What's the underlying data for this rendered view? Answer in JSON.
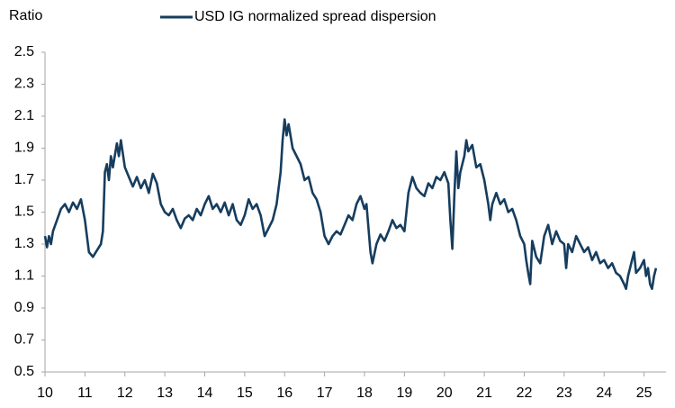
{
  "chart_data": {
    "type": "line",
    "y_label": "Ratio",
    "xlim": [
      10,
      25.55
    ],
    "xticks": [
      10,
      11,
      12,
      13,
      14,
      15,
      16,
      17,
      18,
      19,
      20,
      21,
      22,
      23,
      24,
      25
    ],
    "ylim": [
      0.5,
      2.5
    ],
    "yticks": [
      0.5,
      0.7,
      0.9,
      1.1,
      1.3,
      1.5,
      1.7,
      1.9,
      2.1,
      2.3,
      2.5
    ],
    "grid": false,
    "legend": "top",
    "x": [
      10.0,
      10.05,
      10.1,
      10.15,
      10.2,
      10.3,
      10.4,
      10.5,
      10.6,
      10.7,
      10.8,
      10.9,
      11.0,
      11.05,
      11.1,
      11.2,
      11.3,
      11.4,
      11.45,
      11.5,
      11.55,
      11.6,
      11.65,
      11.7,
      11.8,
      11.85,
      11.9,
      12.0,
      12.1,
      12.2,
      12.3,
      12.4,
      12.5,
      12.6,
      12.7,
      12.8,
      12.9,
      13.0,
      13.1,
      13.2,
      13.3,
      13.4,
      13.5,
      13.6,
      13.7,
      13.8,
      13.9,
      14.0,
      14.1,
      14.2,
      14.3,
      14.4,
      14.5,
      14.6,
      14.7,
      14.8,
      14.9,
      15.0,
      15.1,
      15.2,
      15.3,
      15.4,
      15.5,
      15.6,
      15.7,
      15.8,
      15.9,
      15.95,
      16.0,
      16.05,
      16.1,
      16.2,
      16.3,
      16.4,
      16.5,
      16.6,
      16.7,
      16.8,
      16.9,
      17.0,
      17.1,
      17.2,
      17.3,
      17.4,
      17.5,
      17.6,
      17.7,
      17.8,
      17.9,
      18.0,
      18.05,
      18.1,
      18.15,
      18.2,
      18.3,
      18.4,
      18.5,
      18.6,
      18.7,
      18.8,
      18.9,
      19.0,
      19.05,
      19.1,
      19.2,
      19.3,
      19.4,
      19.5,
      19.6,
      19.7,
      19.8,
      19.9,
      20.0,
      20.1,
      20.15,
      20.2,
      20.25,
      20.3,
      20.35,
      20.4,
      20.5,
      20.55,
      20.6,
      20.7,
      20.8,
      20.9,
      21.0,
      21.1,
      21.15,
      21.2,
      21.3,
      21.4,
      21.5,
      21.6,
      21.7,
      21.8,
      21.9,
      22.0,
      22.05,
      22.1,
      22.15,
      22.2,
      22.3,
      22.4,
      22.5,
      22.6,
      22.7,
      22.8,
      22.9,
      23.0,
      23.05,
      23.1,
      23.2,
      23.3,
      23.4,
      23.5,
      23.6,
      23.7,
      23.8,
      23.9,
      24.0,
      24.1,
      24.2,
      24.3,
      24.4,
      24.5,
      24.55,
      24.6,
      24.7,
      24.75,
      24.8,
      24.9,
      25.0,
      25.05,
      25.1,
      25.15,
      25.2,
      25.25,
      25.3
    ],
    "series": [
      {
        "name": "USD IG normalized spread dispersion",
        "color": "#163d5e",
        "values": [
          1.35,
          1.28,
          1.35,
          1.3,
          1.38,
          1.45,
          1.52,
          1.55,
          1.5,
          1.56,
          1.52,
          1.58,
          1.45,
          1.35,
          1.25,
          1.22,
          1.26,
          1.3,
          1.38,
          1.75,
          1.8,
          1.7,
          1.85,
          1.78,
          1.93,
          1.85,
          1.95,
          1.78,
          1.72,
          1.66,
          1.72,
          1.65,
          1.7,
          1.62,
          1.74,
          1.68,
          1.55,
          1.5,
          1.48,
          1.52,
          1.45,
          1.4,
          1.46,
          1.48,
          1.45,
          1.52,
          1.48,
          1.55,
          1.6,
          1.52,
          1.55,
          1.5,
          1.56,
          1.48,
          1.55,
          1.45,
          1.42,
          1.48,
          1.58,
          1.52,
          1.55,
          1.48,
          1.35,
          1.4,
          1.45,
          1.55,
          1.75,
          1.95,
          2.08,
          1.98,
          2.05,
          1.9,
          1.85,
          1.8,
          1.7,
          1.72,
          1.62,
          1.58,
          1.5,
          1.35,
          1.3,
          1.35,
          1.38,
          1.36,
          1.42,
          1.48,
          1.45,
          1.55,
          1.6,
          1.52,
          1.55,
          1.4,
          1.25,
          1.18,
          1.3,
          1.36,
          1.32,
          1.38,
          1.45,
          1.4,
          1.42,
          1.38,
          1.5,
          1.62,
          1.72,
          1.65,
          1.62,
          1.6,
          1.68,
          1.65,
          1.72,
          1.7,
          1.75,
          1.68,
          1.45,
          1.27,
          1.6,
          1.88,
          1.65,
          1.75,
          1.85,
          1.95,
          1.88,
          1.92,
          1.78,
          1.8,
          1.7,
          1.55,
          1.45,
          1.55,
          1.62,
          1.55,
          1.58,
          1.5,
          1.52,
          1.45,
          1.35,
          1.3,
          1.2,
          1.12,
          1.05,
          1.32,
          1.22,
          1.18,
          1.35,
          1.42,
          1.3,
          1.38,
          1.32,
          1.3,
          1.15,
          1.3,
          1.25,
          1.35,
          1.3,
          1.25,
          1.28,
          1.2,
          1.25,
          1.18,
          1.2,
          1.15,
          1.18,
          1.12,
          1.1,
          1.05,
          1.02,
          1.1,
          1.2,
          1.25,
          1.12,
          1.15,
          1.2,
          1.1,
          1.15,
          1.05,
          1.02,
          1.1,
          1.15
        ]
      }
    ]
  }
}
